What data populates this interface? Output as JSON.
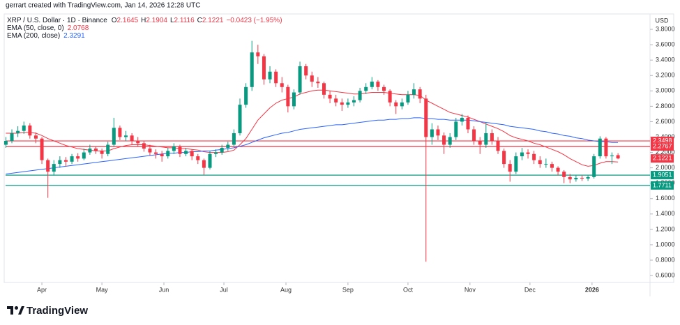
{
  "header": "gerrart created with TradingView.com, Jan 14, 2026 12:28 UTC",
  "footer": "TradingView",
  "chart_data": {
    "type": "candlestick",
    "symbol": "XRP / U.S. Dollar · 1D · Binance",
    "ohlc_labels": [
      "O",
      "H",
      "L",
      "C"
    ],
    "change": "−0.0423 (−1.95%)",
    "currency": "USD",
    "up_color": "#089981",
    "down_color": "#f23645",
    "open": [
      2.3,
      2.35,
      2.45,
      2.48,
      2.55,
      2.42,
      2.38,
      2.1,
      1.95,
      2.05,
      2.1,
      2.08,
      2.15,
      2.12,
      2.2,
      2.25,
      2.22,
      2.18,
      2.3,
      2.52,
      2.4,
      2.42,
      2.35,
      2.32,
      2.25,
      2.2,
      2.18,
      2.15,
      2.22,
      2.28,
      2.18,
      2.22,
      2.15,
      2.1,
      2.0,
      2.18,
      2.2,
      2.26,
      2.3,
      2.45,
      2.82,
      3.05,
      3.5,
      3.45,
      3.15,
      3.25,
      3.1,
      3.05,
      2.8,
      2.98,
      3.32,
      3.2,
      3.12,
      3.1,
      2.95,
      2.9,
      2.85,
      2.82,
      2.85,
      2.88,
      3.0,
      3.05,
      3.12,
      3.05,
      3.0,
      2.85,
      2.8,
      2.85,
      2.95,
      3.02,
      2.9,
      2.4,
      2.5,
      2.42,
      2.3,
      2.4,
      2.6,
      2.65,
      2.5,
      2.35,
      2.3,
      2.45,
      2.35,
      2.22,
      2.05,
      1.95,
      2.15,
      2.2,
      2.18,
      2.1,
      2.05,
      2.05,
      2.0,
      1.95,
      1.88,
      1.85,
      1.87,
      1.86,
      1.88,
      2.15,
      2.38,
      2.15,
      2.1645
    ],
    "high": [
      2.4,
      2.5,
      2.54,
      2.6,
      2.58,
      2.46,
      2.4,
      2.12,
      2.1,
      2.15,
      2.14,
      2.18,
      2.19,
      2.25,
      2.3,
      2.28,
      2.25,
      2.34,
      2.65,
      2.55,
      2.48,
      2.45,
      2.4,
      2.35,
      2.3,
      2.24,
      2.22,
      2.26,
      2.32,
      2.3,
      2.26,
      2.24,
      2.18,
      2.12,
      2.22,
      2.24,
      2.3,
      2.34,
      2.5,
      2.9,
      3.1,
      3.65,
      3.6,
      3.48,
      3.32,
      3.28,
      3.18,
      3.08,
      3.02,
      3.38,
      3.35,
      3.25,
      3.18,
      3.12,
      3.0,
      2.95,
      2.9,
      2.9,
      2.93,
      3.04,
      3.1,
      3.18,
      3.14,
      3.08,
      3.02,
      2.88,
      2.9,
      3.0,
      3.1,
      3.05,
      2.95,
      2.58,
      2.55,
      2.46,
      2.45,
      2.65,
      2.7,
      2.68,
      2.54,
      2.4,
      2.58,
      2.5,
      2.4,
      2.25,
      2.1,
      2.2,
      2.26,
      2.24,
      2.22,
      2.15,
      2.12,
      2.08,
      2.02,
      1.97,
      1.92,
      1.9,
      1.9,
      1.9,
      2.18,
      2.41,
      2.4,
      2.2,
      2.1904
    ],
    "low": [
      2.26,
      2.32,
      2.4,
      2.44,
      2.38,
      2.32,
      2.05,
      1.61,
      1.9,
      2.0,
      2.02,
      2.05,
      2.08,
      2.1,
      2.17,
      2.18,
      2.12,
      2.15,
      2.28,
      2.36,
      2.35,
      2.3,
      2.28,
      2.21,
      2.16,
      2.12,
      2.08,
      2.12,
      2.18,
      2.14,
      2.15,
      2.1,
      2.05,
      1.91,
      1.98,
      2.14,
      2.17,
      2.22,
      2.28,
      2.42,
      2.78,
      3.0,
      3.35,
      3.08,
      3.1,
      3.05,
      2.98,
      2.72,
      2.76,
      2.95,
      3.15,
      3.05,
      3.04,
      2.9,
      2.84,
      2.8,
      2.74,
      2.78,
      2.8,
      2.85,
      2.96,
      3.02,
      3.0,
      2.95,
      2.8,
      2.7,
      2.76,
      2.82,
      2.9,
      2.84,
      0.78,
      2.3,
      2.36,
      2.18,
      2.26,
      2.36,
      2.55,
      2.45,
      2.3,
      2.18,
      2.26,
      2.3,
      2.18,
      2.0,
      1.82,
      1.92,
      2.1,
      2.12,
      2.05,
      2.0,
      2.0,
      1.95,
      1.9,
      1.8,
      1.8,
      1.82,
      1.83,
      1.83,
      1.86,
      2.12,
      2.12,
      2.05,
      2.1116
    ],
    "close": [
      2.35,
      2.45,
      2.48,
      2.55,
      2.42,
      2.38,
      2.1,
      1.95,
      2.05,
      2.1,
      2.08,
      2.15,
      2.12,
      2.2,
      2.25,
      2.22,
      2.18,
      2.3,
      2.52,
      2.4,
      2.42,
      2.35,
      2.32,
      2.25,
      2.2,
      2.18,
      2.15,
      2.22,
      2.28,
      2.18,
      2.22,
      2.15,
      2.1,
      2.0,
      2.18,
      2.2,
      2.26,
      2.3,
      2.45,
      2.82,
      3.05,
      3.5,
      3.45,
      3.15,
      3.25,
      3.1,
      3.05,
      2.8,
      2.98,
      3.32,
      3.2,
      3.12,
      3.1,
      2.95,
      2.9,
      2.85,
      2.82,
      2.85,
      2.88,
      3.0,
      3.05,
      3.12,
      3.05,
      3.0,
      2.85,
      2.8,
      2.85,
      2.95,
      3.02,
      2.9,
      2.4,
      2.5,
      2.42,
      2.3,
      2.4,
      2.6,
      2.65,
      2.5,
      2.35,
      2.3,
      2.45,
      2.35,
      2.22,
      2.05,
      1.95,
      2.15,
      2.2,
      2.18,
      2.1,
      2.05,
      2.05,
      2.0,
      1.95,
      1.88,
      1.85,
      1.87,
      1.86,
      1.88,
      2.15,
      2.38,
      2.15,
      2.16,
      2.1221
    ],
    "series": [
      {
        "name": "EMA (50, close, 0)",
        "color": "#f23645",
        "values": [
          2.45,
          2.45,
          2.45,
          2.46,
          2.46,
          2.45,
          2.42,
          2.38,
          2.35,
          2.32,
          2.29,
          2.27,
          2.25,
          2.24,
          2.23,
          2.22,
          2.22,
          2.22,
          2.25,
          2.27,
          2.29,
          2.3,
          2.3,
          2.3,
          2.29,
          2.28,
          2.27,
          2.26,
          2.26,
          2.25,
          2.25,
          2.24,
          2.23,
          2.21,
          2.2,
          2.2,
          2.2,
          2.21,
          2.23,
          2.3,
          2.38,
          2.5,
          2.62,
          2.7,
          2.78,
          2.84,
          2.88,
          2.9,
          2.92,
          2.96,
          2.98,
          3.0,
          3.01,
          3.01,
          3.0,
          2.99,
          2.98,
          2.97,
          2.96,
          2.96,
          2.97,
          2.98,
          2.98,
          2.98,
          2.97,
          2.96,
          2.95,
          2.95,
          2.95,
          2.94,
          2.88,
          2.84,
          2.8,
          2.76,
          2.72,
          2.7,
          2.68,
          2.66,
          2.63,
          2.6,
          2.57,
          2.54,
          2.51,
          2.47,
          2.42,
          2.39,
          2.37,
          2.35,
          2.32,
          2.3,
          2.27,
          2.24,
          2.21,
          2.17,
          2.12,
          2.08,
          2.04,
          2.02,
          2.03,
          2.06,
          2.08,
          2.08,
          2.0768
        ]
      },
      {
        "name": "EMA (200, close)",
        "color": "#2962ff",
        "values": [
          1.92,
          1.93,
          1.94,
          1.95,
          1.96,
          1.97,
          1.98,
          1.99,
          2.0,
          2.01,
          2.02,
          2.03,
          2.04,
          2.05,
          2.06,
          2.07,
          2.08,
          2.09,
          2.1,
          2.11,
          2.12,
          2.13,
          2.14,
          2.15,
          2.16,
          2.17,
          2.18,
          2.19,
          2.19,
          2.2,
          2.2,
          2.21,
          2.21,
          2.22,
          2.22,
          2.23,
          2.24,
          2.25,
          2.26,
          2.28,
          2.3,
          2.33,
          2.36,
          2.39,
          2.41,
          2.43,
          2.45,
          2.46,
          2.48,
          2.5,
          2.51,
          2.52,
          2.53,
          2.54,
          2.55,
          2.56,
          2.56,
          2.57,
          2.58,
          2.59,
          2.6,
          2.61,
          2.62,
          2.62,
          2.63,
          2.63,
          2.64,
          2.64,
          2.65,
          2.65,
          2.64,
          2.64,
          2.63,
          2.63,
          2.62,
          2.62,
          2.62,
          2.62,
          2.61,
          2.6,
          2.59,
          2.58,
          2.57,
          2.56,
          2.54,
          2.53,
          2.52,
          2.51,
          2.5,
          2.48,
          2.47,
          2.45,
          2.44,
          2.42,
          2.41,
          2.39,
          2.38,
          2.36,
          2.35,
          2.34,
          2.34,
          2.33,
          2.3291
        ]
      }
    ],
    "levels": [
      {
        "value": 2.3498,
        "color": "#f23645"
      },
      {
        "value": 2.2767,
        "color": "#f23645"
      },
      {
        "value": 1.9051,
        "color": "#089981"
      },
      {
        "value": 1.7711,
        "color": "#089981"
      }
    ],
    "xlim": [
      -0.05,
      107.1
    ],
    "xticks": [
      {
        "value": 6,
        "label": "Apr"
      },
      {
        "value": 16,
        "label": "May"
      },
      {
        "value": 26.33,
        "label": "Jun"
      },
      {
        "value": 36.33,
        "label": "Jul"
      },
      {
        "value": 46.67,
        "label": "Aug"
      },
      {
        "value": 57,
        "label": "Sep"
      },
      {
        "value": 67,
        "label": "Oct"
      },
      {
        "value": 77.33,
        "label": "Nov"
      },
      {
        "value": 87.33,
        "label": "Dec"
      },
      {
        "value": 97.67,
        "label": "2026"
      }
    ],
    "ylim": [
      0.51,
      4.0
    ],
    "yticks": [
      {
        "value": 0.6,
        "label": "0.6000"
      },
      {
        "value": 0.8,
        "label": "0.8000"
      },
      {
        "value": 1.0,
        "label": "1.0000"
      },
      {
        "value": 1.2,
        "label": "1.2000"
      },
      {
        "value": 1.4,
        "label": "1.4000"
      },
      {
        "value": 1.6,
        "label": "1.6000"
      },
      {
        "value": 1.8,
        "label": "1.8000"
      },
      {
        "value": 2.0,
        "label": "2.0000"
      },
      {
        "value": 2.2,
        "label": "2.2000"
      },
      {
        "value": 2.4,
        "label": "2.4000"
      },
      {
        "value": 2.6,
        "label": "2.6000"
      },
      {
        "value": 2.8,
        "label": "2.8000"
      },
      {
        "value": 3.0,
        "label": "3.0000"
      },
      {
        "value": 3.2,
        "label": "3.2000"
      },
      {
        "value": 3.4,
        "label": "3.4000"
      },
      {
        "value": 3.6,
        "label": "3.6000"
      },
      {
        "value": 3.8,
        "label": "3.8000"
      }
    ],
    "grid": false
  }
}
